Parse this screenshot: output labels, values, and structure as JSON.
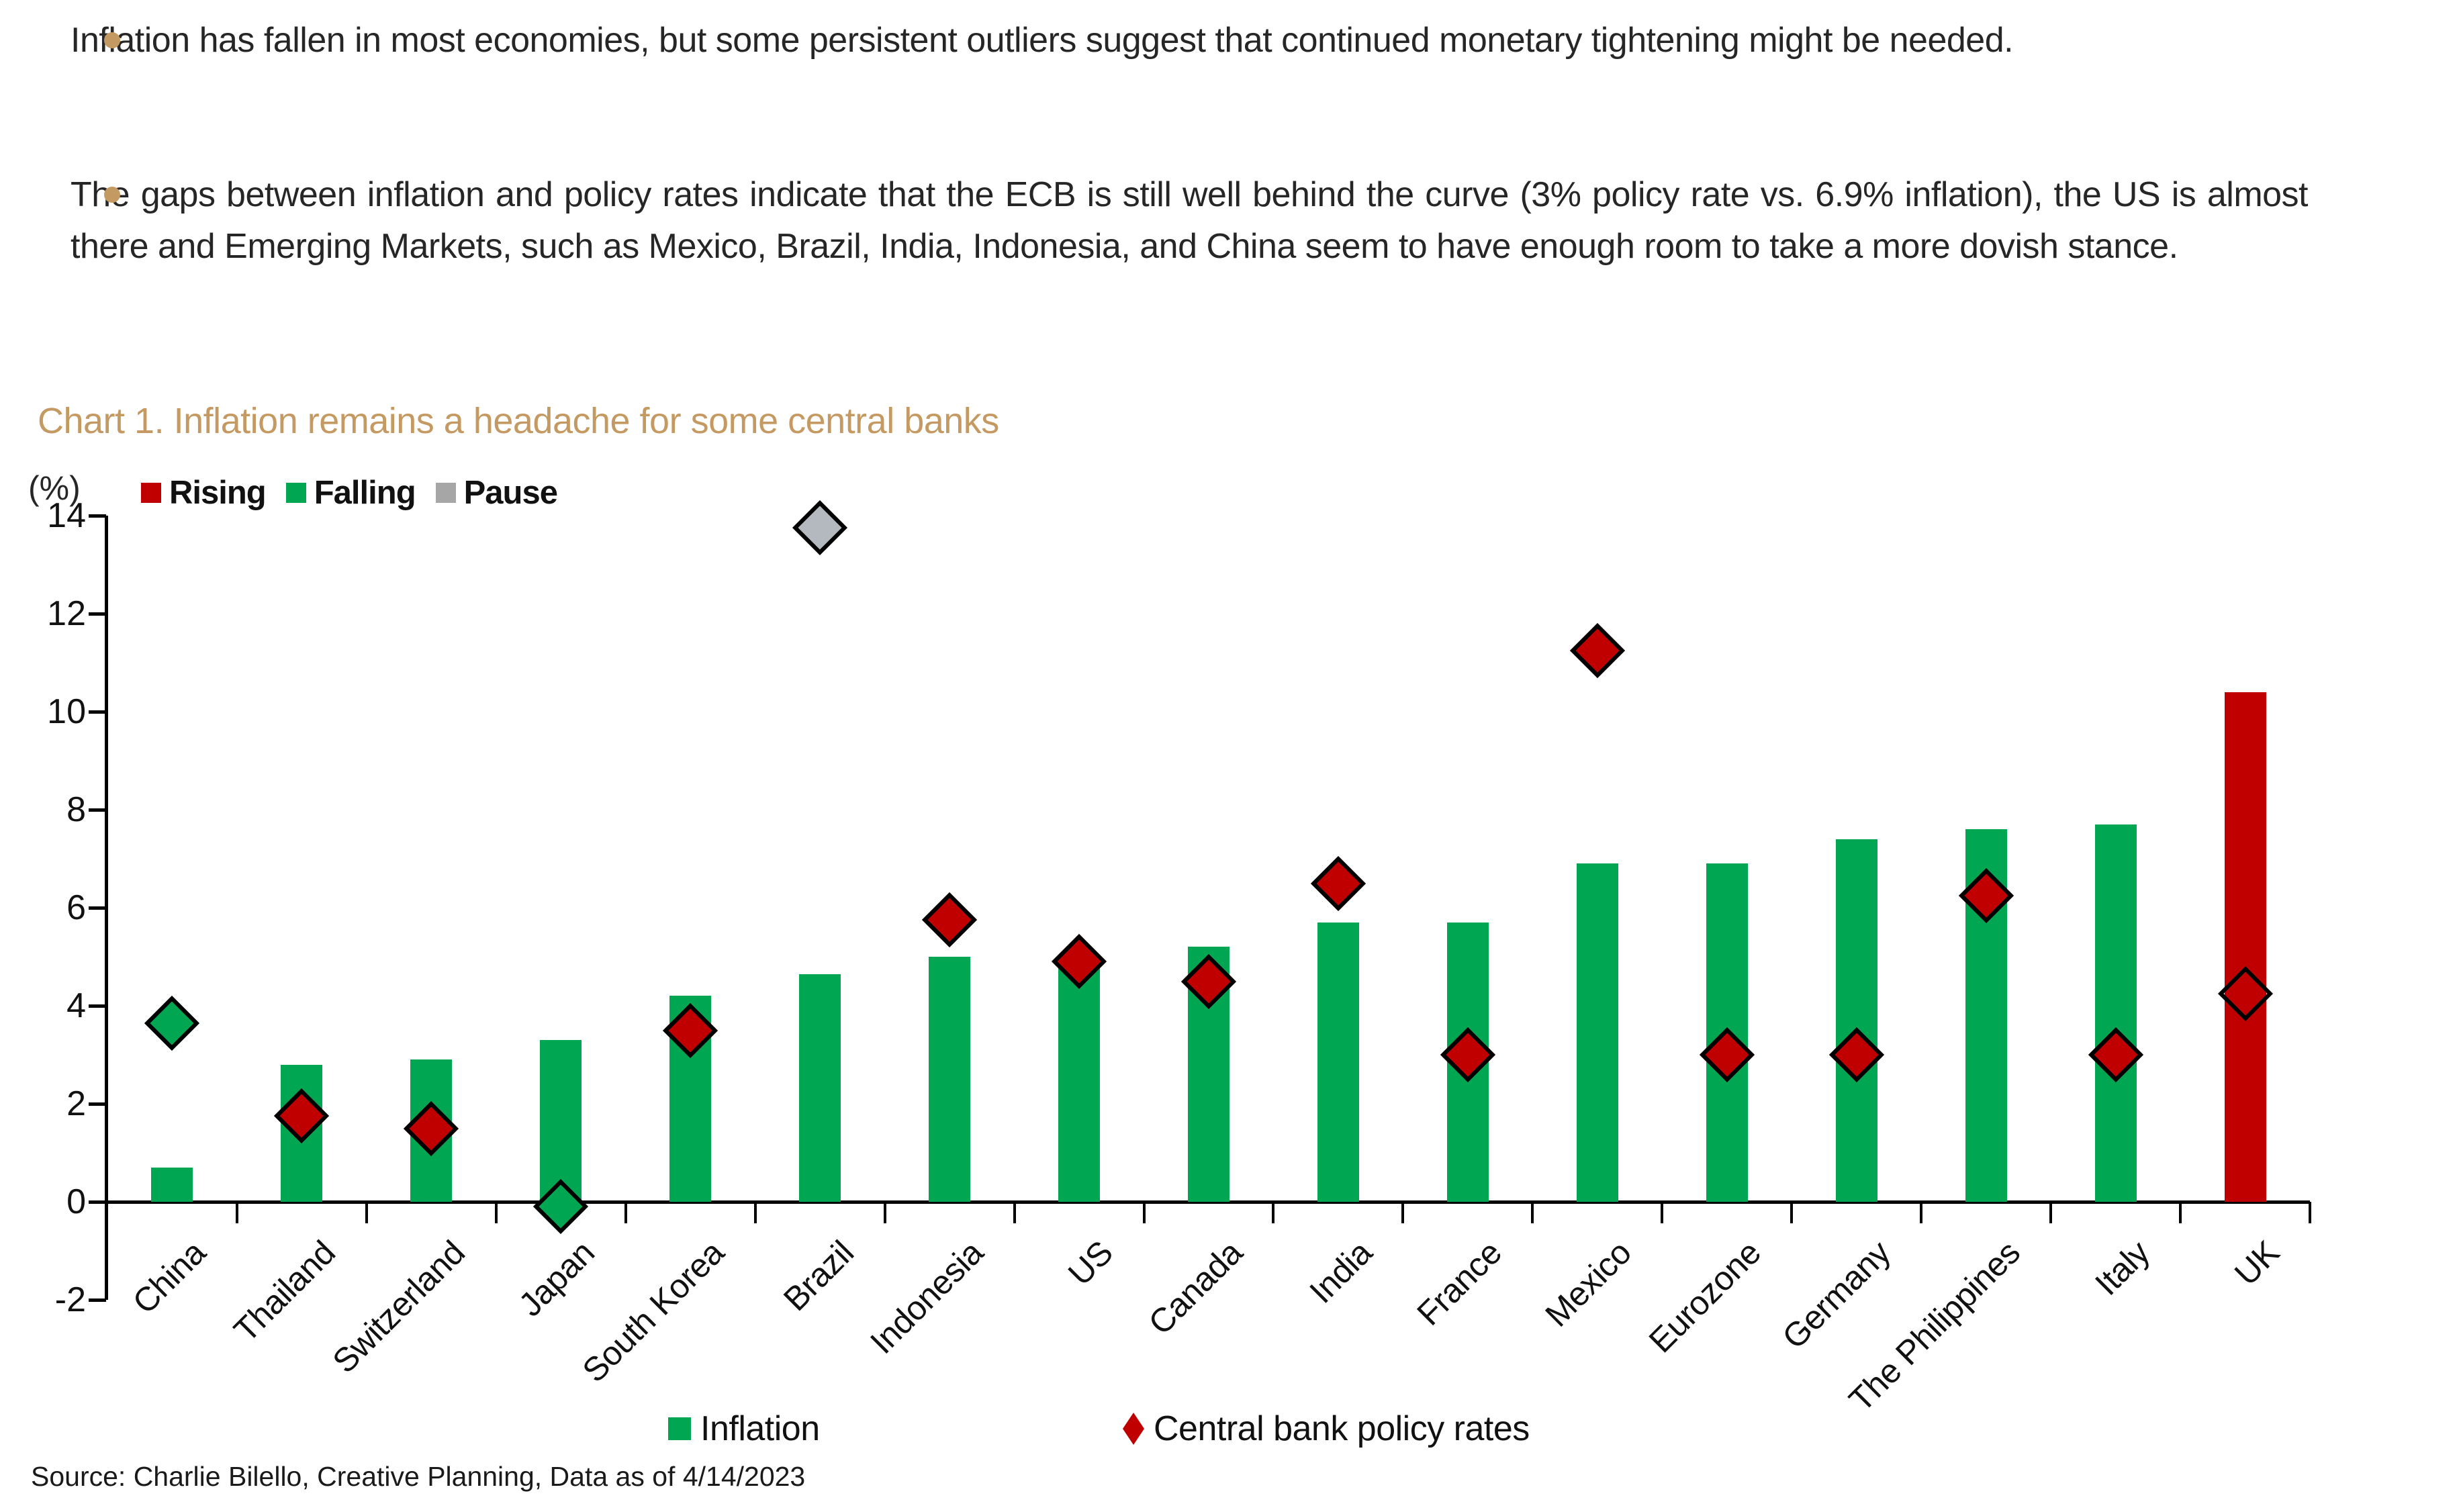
{
  "colors": {
    "green": "#00A651",
    "red": "#C00000",
    "gray": "#B3B9BE",
    "gray_legend": "#A6A6A6",
    "gold": "#C49A62",
    "hollow": "transparent",
    "axis": "#000000"
  },
  "bullets": [
    {
      "text": "Inflation has fallen in most economies, but some persistent outliers suggest that continued monetary tightening might be needed."
    },
    {
      "text": "The gaps between inflation and policy rates indicate that the ECB is still well behind the curve (3% policy rate vs. 6.9% inflation), the US is almost there and Emerging Markets, such as Mexico, Brazil, India, Indonesia, and China seem to have enough room to take a more dovish stance."
    }
  ],
  "chart_title": "Chart 1. Inflation remains a headache for some central banks",
  "axis_unit": "(%)",
  "status_legend": [
    {
      "label": "Rising",
      "color": "#C00000"
    },
    {
      "label": "Falling",
      "color": "#00A651"
    },
    {
      "label": "Pause",
      "color": "#A6A6A6"
    }
  ],
  "series_legend": [
    {
      "label": "Inflation",
      "swatch": "square",
      "color": "#00A651"
    },
    {
      "label": "Central bank policy rates",
      "swatch": "diamond",
      "color": "#C00000"
    }
  ],
  "source": "Source: Charlie Bilello, Creative Planning, Data as of 4/14/2023",
  "chart_data": {
    "type": "bar",
    "title": "Chart 1. Inflation remains a headache for some central banks",
    "xlabel": "",
    "ylabel": "(%)",
    "ylim": [
      -2,
      14
    ],
    "y_ticks": [
      14,
      12,
      10,
      8,
      6,
      4,
      2,
      0,
      -2
    ],
    "grid": false,
    "legend_position": "top",
    "categories": [
      "China",
      "Thailand",
      "Switzerland",
      "Japan",
      "South Korea",
      "Brazil",
      "Indonesia",
      "US",
      "Canada",
      "India",
      "France",
      "Mexico",
      "Eurozone",
      "Germany",
      "The Philippines",
      "Italy",
      "UK"
    ],
    "series": [
      {
        "name": "Inflation",
        "type": "bar",
        "values": [
          0.7,
          2.8,
          2.9,
          3.3,
          4.2,
          4.65,
          5.0,
          5.0,
          5.2,
          5.7,
          5.7,
          6.9,
          6.9,
          7.4,
          7.6,
          7.7,
          10.4
        ],
        "colors": [
          "green",
          "green",
          "green",
          "green",
          "green",
          "green",
          "green",
          "green",
          "green",
          "green",
          "green",
          "green",
          "green",
          "green",
          "green",
          "green",
          "red"
        ]
      },
      {
        "name": "Central bank policy rates",
        "type": "scatter",
        "marker": "diamond",
        "values": [
          3.65,
          1.75,
          1.5,
          -0.1,
          3.5,
          13.75,
          5.75,
          4.9,
          4.5,
          6.5,
          3.0,
          11.25,
          3.0,
          3.0,
          6.25,
          3.0,
          4.25
        ],
        "colors": [
          "green",
          "red",
          "red",
          "green",
          "red",
          "gray",
          "red",
          "red",
          "red",
          "red",
          "red",
          "red",
          "red",
          "red",
          "red",
          "red",
          "hollow"
        ]
      }
    ]
  }
}
